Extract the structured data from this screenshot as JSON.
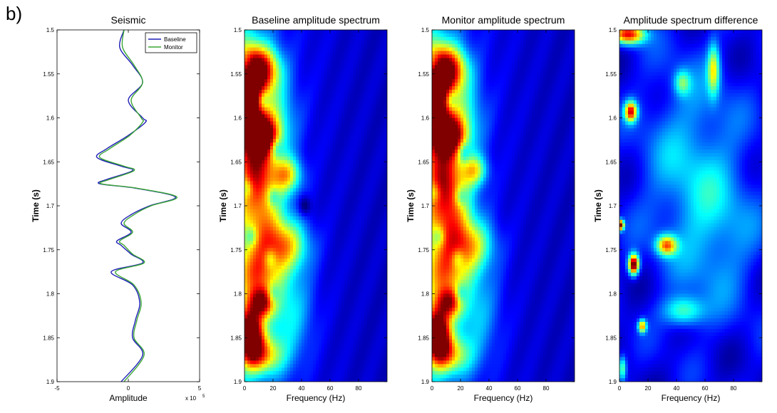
{
  "panel_label": "b)",
  "chart_data": [
    {
      "type": "line",
      "title": "Seismic",
      "xlabel": "Amplitude",
      "ylabel": "Time (s)",
      "x_exponent_label": "x 10",
      "x_exponent": "5",
      "xlim": [
        -5,
        5
      ],
      "ylim": [
        1.5,
        1.9
      ],
      "y_reversed": true,
      "xticks": [
        "-5",
        "0",
        "5"
      ],
      "yticks": [
        "1.5",
        "1.55",
        "1.6",
        "1.65",
        "1.7",
        "1.75",
        "1.8",
        "1.85",
        "1.9"
      ],
      "legend": "top-right",
      "series": [
        {
          "name": "Baseline",
          "color": "#1f1fb8",
          "t": [
            1.5,
            1.52,
            1.54,
            1.56,
            1.58,
            1.6,
            1.605,
            1.62,
            1.635,
            1.645,
            1.655,
            1.66,
            1.67,
            1.675,
            1.68,
            1.69,
            1.7,
            1.71,
            1.72,
            1.73,
            1.74,
            1.745,
            1.755,
            1.765,
            1.775,
            1.79,
            1.81,
            1.83,
            1.85,
            1.87,
            1.9
          ],
          "values": [
            -0.3,
            -0.6,
            0.3,
            1.0,
            0.0,
            1.0,
            1.2,
            0.0,
            -1.5,
            -2.2,
            -0.5,
            0.3,
            -1.5,
            -2.0,
            0.5,
            3.3,
            1.5,
            0.2,
            -0.5,
            0.2,
            -0.8,
            -0.5,
            0.2,
            1.0,
            -1.2,
            0.3,
            0.8,
            0.5,
            0.3,
            1.0,
            -0.5
          ]
        },
        {
          "name": "Monitor",
          "color": "#3aa535",
          "t": [
            1.5,
            1.52,
            1.54,
            1.56,
            1.58,
            1.6,
            1.605,
            1.62,
            1.635,
            1.645,
            1.655,
            1.66,
            1.67,
            1.675,
            1.68,
            1.69,
            1.7,
            1.71,
            1.72,
            1.73,
            1.74,
            1.745,
            1.755,
            1.765,
            1.775,
            1.79,
            1.81,
            1.83,
            1.85,
            1.87,
            1.9
          ],
          "values": [
            -0.3,
            -0.4,
            0.4,
            1.0,
            0.2,
            0.9,
            1.0,
            0.1,
            -1.3,
            -2.0,
            -0.3,
            0.4,
            -1.3,
            -1.9,
            0.6,
            3.4,
            1.6,
            0.4,
            -0.3,
            0.3,
            -0.6,
            -0.3,
            0.3,
            1.1,
            -0.9,
            0.4,
            0.9,
            0.6,
            0.4,
            1.1,
            -0.3
          ]
        }
      ]
    },
    {
      "type": "heatmap",
      "title": "Baseline amplitude spectrum",
      "xlabel": "Frequency (Hz)",
      "ylabel": "Time (s)",
      "xlim": [
        0,
        100
      ],
      "ylim": [
        1.5,
        1.9
      ],
      "y_reversed": true,
      "xticks": [
        "0",
        "20",
        "40",
        "60",
        "80"
      ],
      "yticks": [
        "1.5",
        "1.55",
        "1.6",
        "1.65",
        "1.7",
        "1.75",
        "1.8",
        "1.85",
        "1.9"
      ],
      "blobs": [
        {
          "f": 12,
          "t": 1.545,
          "a": 0.7,
          "sf": 9,
          "st": 0.018
        },
        {
          "f": 2,
          "t": 1.57,
          "a": 0.5,
          "sf": 6,
          "st": 0.03
        },
        {
          "f": 12,
          "t": 1.62,
          "a": 0.65,
          "sf": 8,
          "st": 0.015
        },
        {
          "f": 4,
          "t": 1.6,
          "a": 0.4,
          "sf": 8,
          "st": 0.05
        },
        {
          "f": 18,
          "t": 1.6,
          "a": 0.3,
          "sf": 12,
          "st": 0.03
        },
        {
          "f": 30,
          "t": 1.665,
          "a": 0.45,
          "sf": 7,
          "st": 0.014
        },
        {
          "f": 10,
          "t": 1.66,
          "a": 0.4,
          "sf": 10,
          "st": 0.03
        },
        {
          "f": 12,
          "t": 1.72,
          "a": 0.4,
          "sf": 12,
          "st": 0.04
        },
        {
          "f": 28,
          "t": 1.745,
          "a": 0.45,
          "sf": 12,
          "st": 0.02
        },
        {
          "f": 8,
          "t": 1.78,
          "a": 0.4,
          "sf": 10,
          "st": 0.02
        },
        {
          "f": 12,
          "t": 1.81,
          "a": 0.6,
          "sf": 6,
          "st": 0.012
        },
        {
          "f": 4,
          "t": 1.845,
          "a": 1.0,
          "sf": 6,
          "st": 0.02
        },
        {
          "f": 12,
          "t": 1.87,
          "a": 0.5,
          "sf": 10,
          "st": 0.015
        },
        {
          "f": 30,
          "t": 1.82,
          "a": 0.25,
          "sf": 12,
          "st": 0.04
        }
      ],
      "holes": [
        {
          "f": 2,
          "t": 1.54
        },
        {
          "f": 13,
          "t": 1.58
        },
        {
          "f": 2,
          "t": 1.61
        },
        {
          "f": 22,
          "t": 1.635
        },
        {
          "f": 2,
          "t": 1.68
        },
        {
          "f": 20,
          "t": 1.69
        },
        {
          "f": 5,
          "t": 1.735
        },
        {
          "f": 18,
          "t": 1.76
        },
        {
          "f": 20,
          "t": 1.8
        },
        {
          "f": 42,
          "t": 1.7
        }
      ]
    },
    {
      "type": "heatmap",
      "title": "Monitor amplitude spectrum",
      "xlabel": "Frequency (Hz)",
      "ylabel": "Time (s)",
      "xlim": [
        0,
        100
      ],
      "ylim": [
        1.5,
        1.9
      ],
      "y_reversed": true,
      "xticks": [
        "0",
        "20",
        "40",
        "60",
        "80"
      ],
      "yticks": [
        "1.5",
        "1.55",
        "1.6",
        "1.65",
        "1.7",
        "1.75",
        "1.8",
        "1.85",
        "1.9"
      ],
      "blobs": [
        {
          "f": 12,
          "t": 1.545,
          "a": 0.7,
          "sf": 9,
          "st": 0.018
        },
        {
          "f": 2,
          "t": 1.57,
          "a": 0.45,
          "sf": 6,
          "st": 0.03
        },
        {
          "f": 12,
          "t": 1.62,
          "a": 0.6,
          "sf": 8,
          "st": 0.015
        },
        {
          "f": 4,
          "t": 1.6,
          "a": 0.4,
          "sf": 8,
          "st": 0.05
        },
        {
          "f": 18,
          "t": 1.6,
          "a": 0.3,
          "sf": 12,
          "st": 0.03
        },
        {
          "f": 30,
          "t": 1.66,
          "a": 0.4,
          "sf": 6,
          "st": 0.012
        },
        {
          "f": 10,
          "t": 1.67,
          "a": 0.4,
          "sf": 10,
          "st": 0.03
        },
        {
          "f": 12,
          "t": 1.72,
          "a": 0.45,
          "sf": 12,
          "st": 0.04
        },
        {
          "f": 26,
          "t": 1.745,
          "a": 0.4,
          "sf": 12,
          "st": 0.02
        },
        {
          "f": 8,
          "t": 1.78,
          "a": 0.35,
          "sf": 10,
          "st": 0.02
        },
        {
          "f": 12,
          "t": 1.81,
          "a": 0.55,
          "sf": 6,
          "st": 0.012
        },
        {
          "f": 4,
          "t": 1.845,
          "a": 1.0,
          "sf": 6,
          "st": 0.02
        },
        {
          "f": 12,
          "t": 1.87,
          "a": 0.45,
          "sf": 10,
          "st": 0.015
        },
        {
          "f": 30,
          "t": 1.82,
          "a": 0.2,
          "sf": 12,
          "st": 0.04
        }
      ],
      "holes": [
        {
          "f": 2,
          "t": 1.54
        },
        {
          "f": 13,
          "t": 1.58
        },
        {
          "f": 2,
          "t": 1.61
        },
        {
          "f": 22,
          "t": 1.64
        },
        {
          "f": 2,
          "t": 1.685
        },
        {
          "f": 20,
          "t": 1.69
        },
        {
          "f": 5,
          "t": 1.735
        },
        {
          "f": 18,
          "t": 1.76
        },
        {
          "f": 20,
          "t": 1.8
        }
      ]
    },
    {
      "type": "heatmap",
      "title": "Amplitude spectrum difference",
      "xlabel": "Frequency (Hz)",
      "ylabel": "Time (s)",
      "xlim": [
        0,
        100
      ],
      "ylim": [
        1.5,
        1.9
      ],
      "y_reversed": true,
      "xticks": [
        "0",
        "20",
        "40",
        "60",
        "80"
      ],
      "yticks": [
        "1.5",
        "1.55",
        "1.6",
        "1.65",
        "1.7",
        "1.75",
        "1.8",
        "1.85",
        "1.9"
      ],
      "blobs": [
        {
          "f": 6,
          "t": 1.505,
          "a": 0.8,
          "sf": 8,
          "st": 0.008
        },
        {
          "f": 8,
          "t": 1.593,
          "a": 0.75,
          "sf": 3,
          "st": 0.008
        },
        {
          "f": 10,
          "t": 1.767,
          "a": 1.0,
          "sf": 2.5,
          "st": 0.008
        },
        {
          "f": 1,
          "t": 1.722,
          "a": 0.9,
          "sf": 1.5,
          "st": 0.004
        },
        {
          "f": 33,
          "t": 1.745,
          "a": 0.6,
          "sf": 5,
          "st": 0.008
        },
        {
          "f": 66,
          "t": 1.545,
          "a": 0.45,
          "sf": 3,
          "st": 0.02
        },
        {
          "f": 44,
          "t": 1.56,
          "a": 0.3,
          "sf": 4,
          "st": 0.01
        },
        {
          "f": 45,
          "t": 1.82,
          "a": 0.35,
          "sf": 10,
          "st": 0.012
        },
        {
          "f": 16,
          "t": 1.837,
          "a": 0.6,
          "sf": 2,
          "st": 0.005
        },
        {
          "f": 2,
          "t": 1.885,
          "a": 0.4,
          "sf": 2,
          "st": 0.01
        },
        {
          "f": 50,
          "t": 1.65,
          "a": 0.2,
          "sf": 25,
          "st": 0.08
        },
        {
          "f": 70,
          "t": 1.74,
          "a": 0.15,
          "sf": 20,
          "st": 0.06
        }
      ],
      "holes": []
    }
  ]
}
